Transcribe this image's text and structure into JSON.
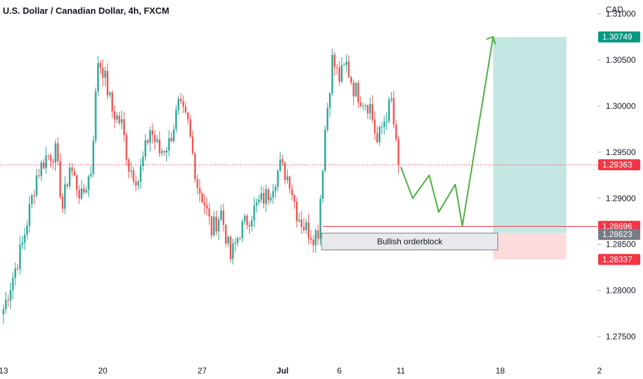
{
  "header": {
    "title": "U.S. Dollar / Canadian Dollar, 4h, FXCM"
  },
  "chart_data": {
    "type": "candlestick",
    "title": "U.S. Dollar / Canadian Dollar, 4h, FXCM",
    "currency": "CAD",
    "y_ticks": [
      "1.31000",
      "1.30500",
      "1.30000",
      "1.29500",
      "1.29000",
      "1.28500",
      "1.28000",
      "1.27500"
    ],
    "ylim": [
      1.2725,
      1.3115
    ],
    "x_ticks": [
      "13",
      "20",
      "27",
      "Jul",
      "6",
      "11",
      "18",
      "2"
    ],
    "x_tick_bars": [
      0,
      42,
      84,
      118,
      142,
      168,
      210,
      252
    ],
    "bars_visible": 250,
    "price_levels": {
      "target": "1.30749",
      "current": "1.29363",
      "zone_top": "1.28696",
      "zone_level": "1.28623",
      "stop": "1.28337"
    },
    "annotation": "Bullish orderblock",
    "projection_path": [
      [
        168,
        1.2934
      ],
      [
        173,
        1.29
      ],
      [
        180,
        1.2925
      ],
      [
        184,
        1.2885
      ],
      [
        191,
        1.2915
      ],
      [
        194,
        1.287
      ],
      [
        207,
        1.3075
      ]
    ],
    "anchors": [
      [
        0,
        1.278
      ],
      [
        8,
        1.285
      ],
      [
        14,
        1.2925
      ],
      [
        18,
        1.2945
      ],
      [
        22,
        1.295
      ],
      [
        25,
        1.289
      ],
      [
        28,
        1.2935
      ],
      [
        33,
        1.29
      ],
      [
        37,
        1.293
      ],
      [
        40,
        1.305
      ],
      [
        42,
        1.304
      ],
      [
        46,
        1.2995
      ],
      [
        50,
        1.298
      ],
      [
        53,
        1.2935
      ],
      [
        57,
        1.292
      ],
      [
        62,
        1.2975
      ],
      [
        66,
        1.295
      ],
      [
        70,
        1.296
      ],
      [
        74,
        1.3
      ],
      [
        78,
        1.298
      ],
      [
        82,
        1.2915
      ],
      [
        85,
        1.2895
      ],
      [
        88,
        1.2865
      ],
      [
        92,
        1.2885
      ],
      [
        96,
        1.2835
      ],
      [
        100,
        1.2865
      ],
      [
        104,
        1.288
      ],
      [
        108,
        1.2895
      ],
      [
        112,
        1.2905
      ],
      [
        117,
        1.2935
      ],
      [
        121,
        1.292
      ],
      [
        124,
        1.2885
      ],
      [
        127,
        1.287
      ],
      [
        131,
        1.286
      ],
      [
        133,
        1.2865
      ],
      [
        136,
        1.2975
      ],
      [
        139,
        1.305
      ],
      [
        142,
        1.303
      ],
      [
        145,
        1.3045
      ],
      [
        148,
        1.302
      ],
      [
        151,
        1.301
      ],
      [
        155,
        1.3
      ],
      [
        158,
        1.296
      ],
      [
        161,
        1.2985
      ],
      [
        164,
        1.3005
      ],
      [
        166,
        1.2955
      ],
      [
        167,
        1.2936
      ]
    ],
    "colors": {
      "up": "#26a69a",
      "down": "#ef5350",
      "projection": "#4caf3f",
      "target_zone": "#b2dfdb",
      "stop_zone": "#fbcfd0",
      "target_badge": "#089981",
      "current_badge": "#f23645",
      "zone_badge": "#787b86"
    }
  }
}
